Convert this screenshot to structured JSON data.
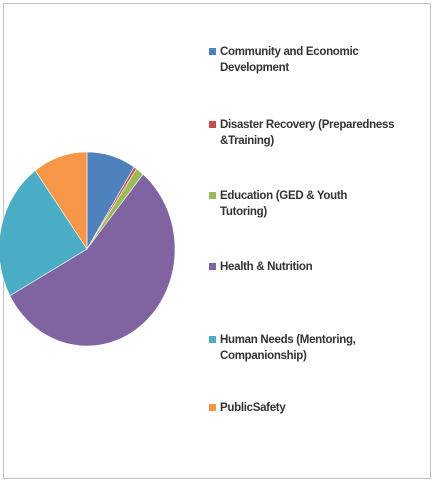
{
  "chart_data": {
    "type": "pie",
    "title": "",
    "legend_position": "right",
    "slices": [
      {
        "label": "Community and Economic Development",
        "value": 9,
        "color": "#4f81bd"
      },
      {
        "label": "Disaster Recovery (Preparedness &Training)",
        "value": 0.5,
        "color": "#c0504d"
      },
      {
        "label": "Education (GED & Youth Tutoring)",
        "value": 1.5,
        "color": "#9bbb59"
      },
      {
        "label": "Health & Nutrition",
        "value": 56,
        "color": "#8064a2"
      },
      {
        "label": "Human Needs (Mentoring, Companionship)",
        "value": 23,
        "color": "#4bacc6"
      },
      {
        "label": "Public Safety",
        "value": 10,
        "color": "#f79646"
      }
    ]
  },
  "legend": {
    "items": [
      {
        "lines": [
          "Community and Economic",
          "Development"
        ]
      },
      {
        "lines": [
          "Disaster Recovery (Preparedness",
          "&Training)"
        ]
      },
      {
        "lines": [
          "Education (GED & Youth",
          "Tutoring)"
        ]
      },
      {
        "lines": [
          "Health & Nutrition"
        ]
      },
      {
        "lines": [
          "Human Needs (Mentoring,",
          "Companionship)"
        ]
      },
      {
        "lines": [
          "PublicSafety"
        ]
      }
    ]
  }
}
